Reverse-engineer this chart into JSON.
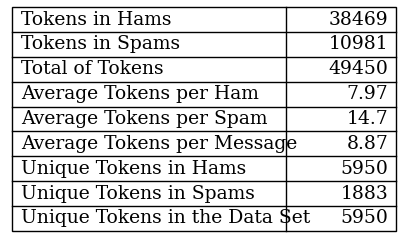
{
  "rows": [
    [
      "Tokens in Hams",
      "38469"
    ],
    [
      "Tokens in Spams",
      "10981"
    ],
    [
      "Total of Tokens",
      "49450"
    ],
    [
      "Average Tokens per Ham",
      "7.97"
    ],
    [
      "Average Tokens per Spam",
      "14.7"
    ],
    [
      "Average Tokens per Message",
      "8.87"
    ],
    [
      "Unique Tokens in Hams",
      "5950"
    ],
    [
      "Unique Tokens in Spams",
      "1883"
    ],
    [
      "Unique Tokens in the Data Set",
      "5950"
    ]
  ],
  "col_split": 0.715,
  "background_color": "#ffffff",
  "border_color": "#000000",
  "text_color": "#000000",
  "font_size": 13.5,
  "fig_width": 4.08,
  "fig_height": 2.38,
  "dpi": 100
}
